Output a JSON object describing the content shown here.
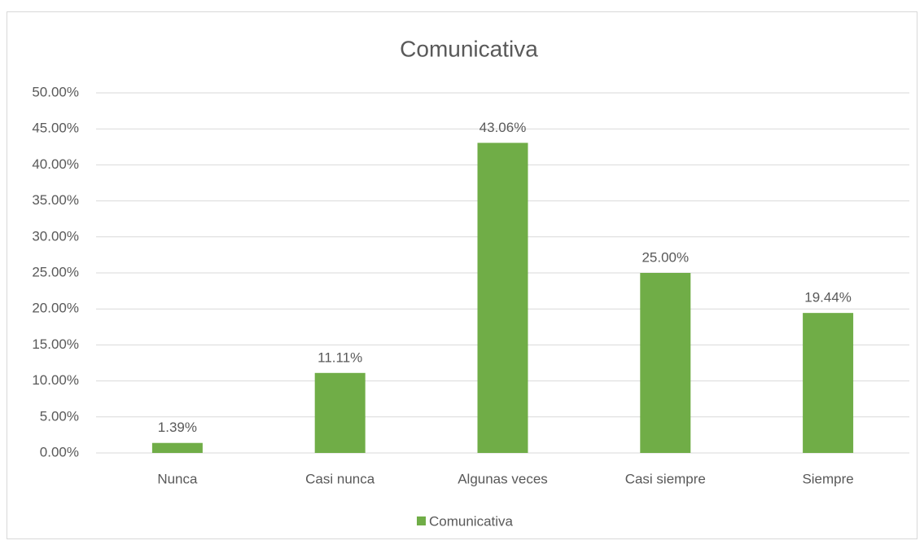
{
  "chart_data": {
    "type": "bar",
    "title": "Comunicativa",
    "categories": [
      "Nunca",
      "Casi nunca",
      "Algunas veces",
      "Casi siempre",
      "Siempre"
    ],
    "series": [
      {
        "name": "Comunicativa",
        "color": "#70ad47",
        "values": [
          1.39,
          11.11,
          43.06,
          25.0,
          19.44
        ],
        "value_labels": [
          "1.39%",
          "11.11%",
          "43.06%",
          "25.00%",
          "19.44%"
        ]
      }
    ],
    "ylim": [
      0,
      50
    ],
    "yticks": [
      {
        "value": 0,
        "label": "0.00%"
      },
      {
        "value": 5,
        "label": "5.00%"
      },
      {
        "value": 10,
        "label": "10.00%"
      },
      {
        "value": 15,
        "label": "15.00%"
      },
      {
        "value": 20,
        "label": "20.00%"
      },
      {
        "value": 25,
        "label": "25.00%"
      },
      {
        "value": 30,
        "label": "30.00%"
      },
      {
        "value": 35,
        "label": "35.00%"
      },
      {
        "value": 40,
        "label": "40.00%"
      },
      {
        "value": 45,
        "label": "45.00%"
      },
      {
        "value": 50,
        "label": "50.00%"
      }
    ],
    "grid": true,
    "legend": "bottom"
  }
}
